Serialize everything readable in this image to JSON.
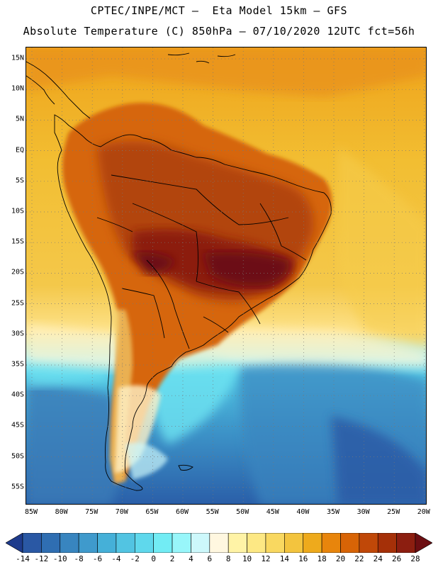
{
  "header": {
    "line1": "CPTEC/INPE/MCT –  Eta Model 15km – GFS",
    "line2": "Absolute Temperature (C) 850hPa – 07/10/2020 12UTC fct=56h"
  },
  "map": {
    "lat_labels": [
      "15N",
      "10N",
      "5N",
      "EQ",
      "5S",
      "10S",
      "15S",
      "20S",
      "25S",
      "30S",
      "35S",
      "40S",
      "45S",
      "50S",
      "55S"
    ],
    "lon_labels": [
      "85W",
      "80W",
      "75W",
      "70W",
      "65W",
      "60W",
      "55W",
      "50W",
      "45W",
      "40W",
      "35W",
      "30W",
      "25W",
      "20W"
    ]
  },
  "colorbar": {
    "labels": [
      "-14",
      "-12",
      "-10",
      "-8",
      "-6",
      "-4",
      "-2",
      "0",
      "2",
      "4",
      "6",
      "8",
      "10",
      "12",
      "14",
      "16",
      "18",
      "20",
      "22",
      "24",
      "26",
      "28"
    ],
    "colors": [
      "#1e3b8c",
      "#2a58a4",
      "#2f6eb2",
      "#3885bf",
      "#3f9acc",
      "#45b0d8",
      "#52c4e2",
      "#5fd8ec",
      "#72ecf4",
      "#98f6fa",
      "#cdf8fb",
      "#fff7e0",
      "#fff3a6",
      "#fde884",
      "#f9d860",
      "#f3c43e",
      "#eeaa1c",
      "#e8850c",
      "#d86406",
      "#c04808",
      "#a53008",
      "#8c1e10",
      "#6c0e12"
    ]
  }
}
